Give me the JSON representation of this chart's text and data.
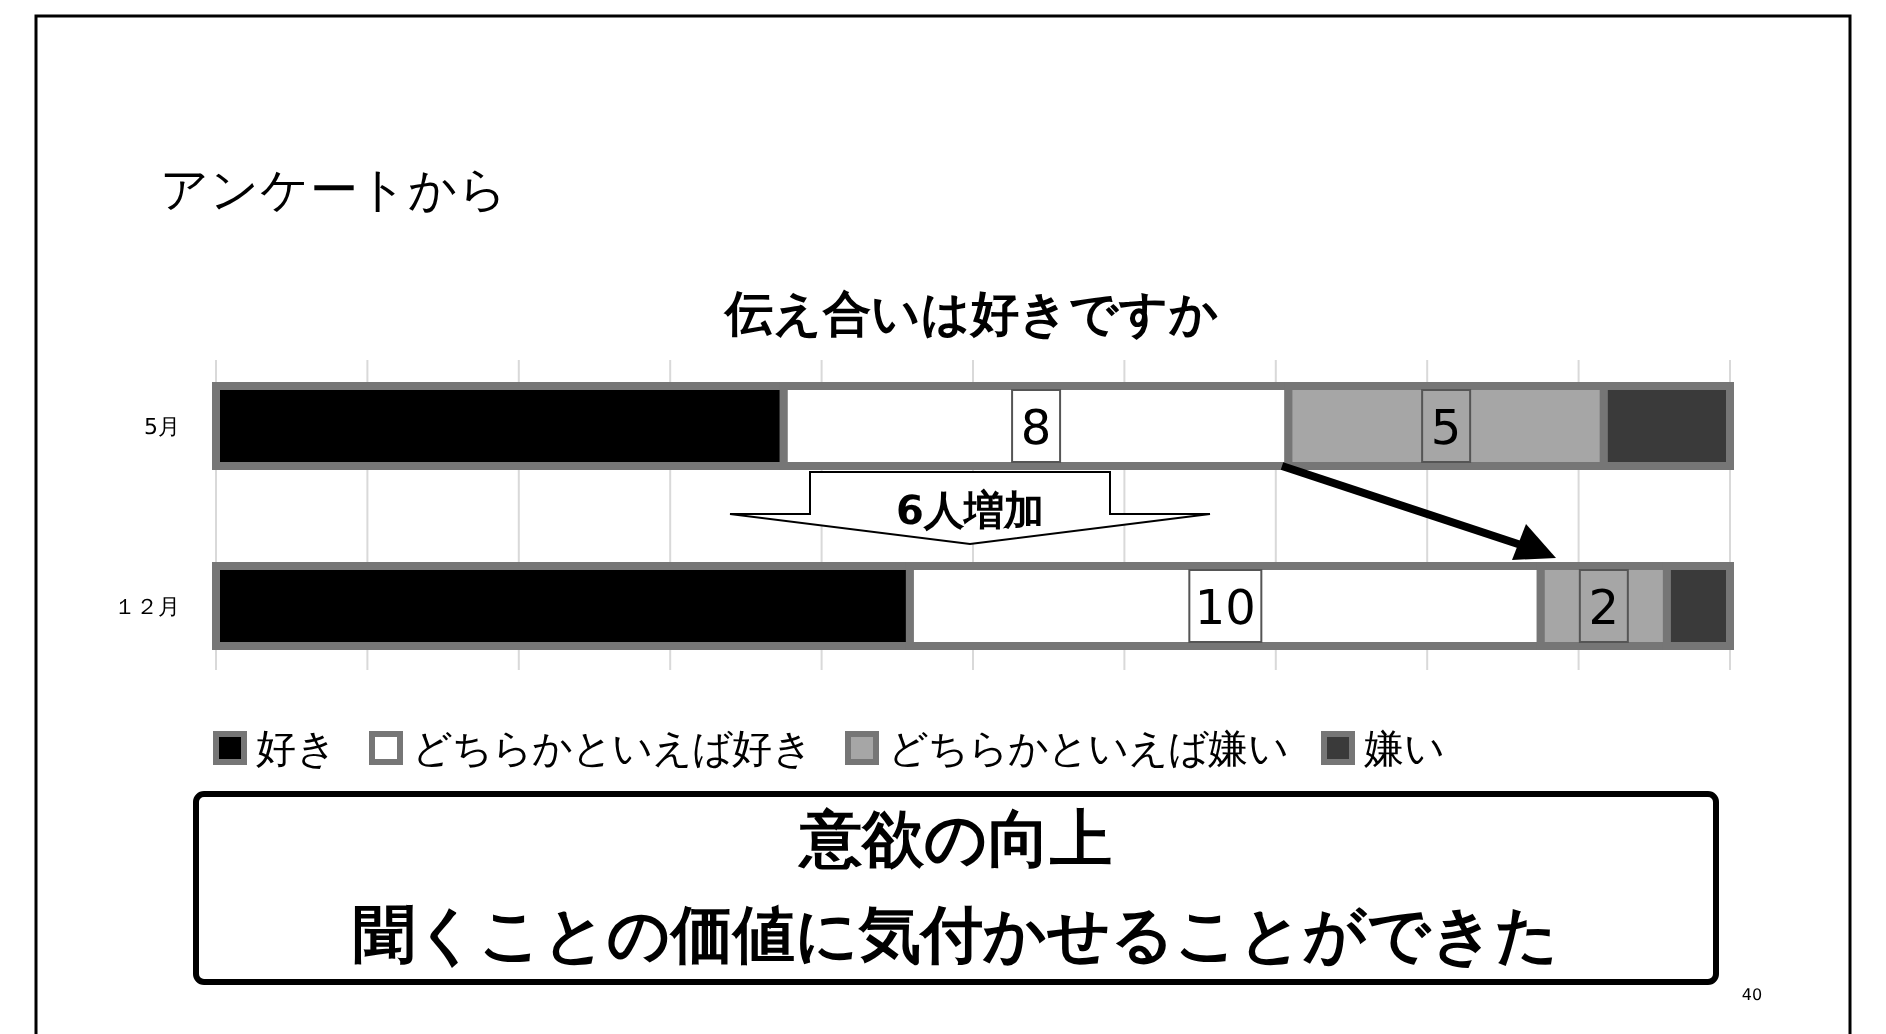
{
  "chart_data": {
    "type": "bar",
    "orientation": "horizontal",
    "stacked": true,
    "title": "アンケートから",
    "subtitle": "伝え合いは好きですか",
    "categories": [
      "5月",
      "１２月"
    ],
    "series": [
      {
        "name": "好き",
        "color": "#000000",
        "values": [
          9,
          11
        ],
        "value_labels": [
          null,
          null
        ]
      },
      {
        "name": "どちらかといえば好き",
        "color": "#ffffff",
        "values": [
          8,
          10
        ],
        "value_labels": [
          "8",
          "10"
        ]
      },
      {
        "name": "どちらかといえば嫌い",
        "color": "#a6a6a6",
        "values": [
          5,
          2
        ],
        "value_labels": [
          "5",
          "2"
        ]
      },
      {
        "name": "嫌い",
        "color": "#3a3a3a",
        "values": [
          2,
          1
        ],
        "value_labels": [
          null,
          null
        ]
      }
    ],
    "xlim": [
      0,
      24
    ],
    "xticks": [
      {
        "value": 0,
        "label": null
      },
      {
        "value": 2.4,
        "label": null
      },
      {
        "value": 4.8,
        "label": null
      },
      {
        "value": 7.2,
        "label": null
      },
      {
        "value": 9.6,
        "label": null
      },
      {
        "value": 12,
        "label": null
      },
      {
        "value": 14.4,
        "label": null
      },
      {
        "value": 16.8,
        "label": null
      },
      {
        "value": 19.2,
        "label": null
      },
      {
        "value": 21.6,
        "label": null
      },
      {
        "value": 24,
        "label": null
      }
    ],
    "grid": "x",
    "legend": "bottom",
    "tick_labels": "y",
    "annotations": [
      "6人増加",
      "意欲の向上",
      "聞くことの価値に気付かせることができた",
      "40"
    ]
  }
}
